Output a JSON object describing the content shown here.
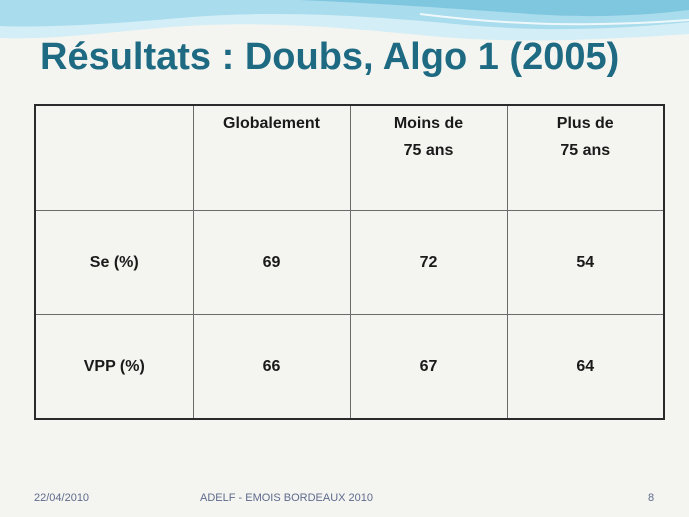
{
  "slide": {
    "title": "Résultats : Doubs, Algo 1 (2005)"
  },
  "table": {
    "header": {
      "empty": "",
      "col1": [
        "Globalement"
      ],
      "col2": [
        "Moins de",
        "75 ans"
      ],
      "col3": [
        "Plus de",
        "75 ans"
      ]
    },
    "rows": [
      {
        "label": "Se (%)",
        "values": [
          "69",
          "72",
          "54"
        ]
      },
      {
        "label": "VPP (%)",
        "values": [
          "66",
          "67",
          "64"
        ]
      }
    ]
  },
  "footer": {
    "date": "22/04/2010",
    "center": "ADELF - EMOIS BORDEAUX 2010",
    "page": "8"
  },
  "colors": {
    "title": "#1e6a83",
    "background": "#f4f5f0",
    "wave_light": "#bfe6f2",
    "wave_mid": "#8fd0e6",
    "footer_text": "#5f6a8c"
  }
}
